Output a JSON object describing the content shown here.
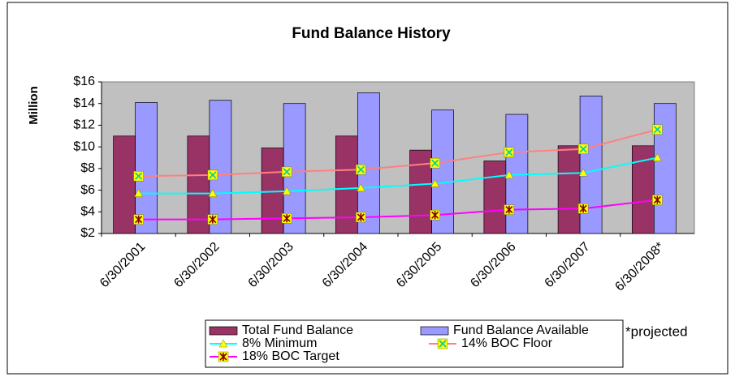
{
  "chart_data": {
    "type": "bar",
    "title": "Fund Balance History",
    "ylabel": "Million",
    "categories": [
      "6/30/2001",
      "6/30/2002",
      "6/30/2003",
      "6/30/2004",
      "6/30/2005",
      "6/30/2006",
      "6/30/2007",
      "6/30/2008*"
    ],
    "series": [
      {
        "name": "Total Fund Balance",
        "type": "bar",
        "color": "#993366",
        "values": [
          11,
          11,
          9.9,
          11,
          9.7,
          8.7,
          10.1,
          10.1
        ]
      },
      {
        "name": "Fund Balance Available",
        "type": "bar",
        "color": "#9999ff",
        "values": [
          14.1,
          14.3,
          14.0,
          15.0,
          13.4,
          13.0,
          14.7,
          14.0
        ]
      },
      {
        "name": "8% Minimum",
        "type": "line",
        "color": "#00ffff",
        "marker": "triangle",
        "values": [
          5.7,
          5.7,
          5.9,
          6.2,
          6.6,
          7.4,
          7.6,
          9.0
        ]
      },
      {
        "name": "14% BOC Floor",
        "type": "line",
        "color": "#ff8080",
        "marker": "square",
        "values": [
          7.3,
          7.4,
          7.7,
          7.9,
          8.5,
          9.5,
          9.8,
          11.6
        ]
      },
      {
        "name": "18% BOC Target",
        "type": "line",
        "color": "#ff00ff",
        "marker": "star",
        "values": [
          3.3,
          3.3,
          3.4,
          3.5,
          3.7,
          4.2,
          4.3,
          5.1
        ]
      }
    ],
    "ylim": [
      2,
      16
    ],
    "yticks": [
      {
        "value": 2,
        "label": "$2"
      },
      {
        "value": 4,
        "label": "$4"
      },
      {
        "value": 6,
        "label": "$6"
      },
      {
        "value": 8,
        "label": "$8"
      },
      {
        "value": 10,
        "label": "$10"
      },
      {
        "value": 12,
        "label": "$12"
      },
      {
        "value": 14,
        "label": "$14"
      },
      {
        "value": 16,
        "label": "$16"
      }
    ],
    "grid": false,
    "plot_background": "#c0c0c0",
    "annotation": "*projected"
  }
}
